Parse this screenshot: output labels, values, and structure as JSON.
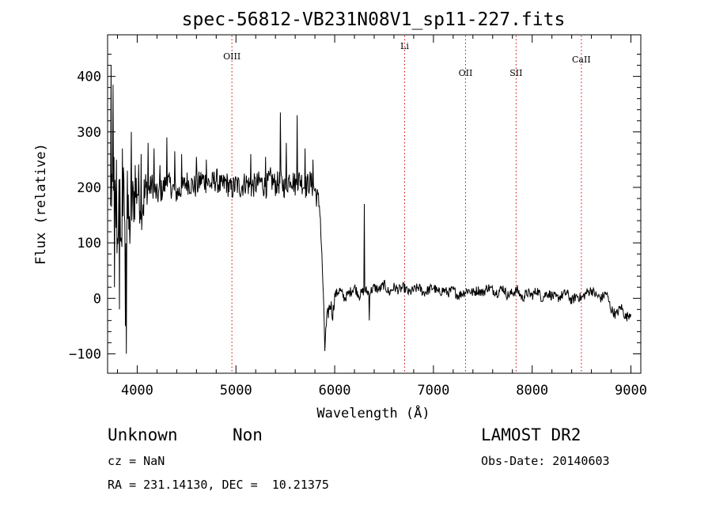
{
  "chart_data": {
    "type": "line",
    "title": "spec-56812-VB231N08V1_sp11-227.fits",
    "xlabel": "Wavelength (Å)",
    "ylabel": "Flux (relative)",
    "xlim": [
      3700,
      9100
    ],
    "ylim": [
      -135,
      475
    ],
    "x_ticks": [
      4000,
      5000,
      6000,
      7000,
      8000,
      9000
    ],
    "y_ticks": [
      -100,
      0,
      100,
      200,
      300,
      400
    ],
    "series": [
      {
        "x": [
          3740,
          3760,
          3780,
          3800,
          3820,
          3840,
          3860,
          3880,
          3900,
          3920,
          3950,
          3980,
          4000,
          4050,
          4100,
          4150,
          4200,
          4250,
          4300,
          4350,
          4400,
          4450,
          4500,
          4550,
          4600,
          4650,
          4700,
          4750,
          4800,
          4850,
          4900,
          4950,
          5000,
          5050,
          5100,
          5150,
          5200,
          5250,
          5300,
          5350,
          5400,
          5450,
          5500,
          5550,
          5600,
          5650,
          5700,
          5750,
          5800,
          5850,
          5880,
          5900,
          5920,
          5940,
          5960,
          5980,
          6000,
          6050,
          6100,
          6150,
          6200,
          6250,
          6300,
          6350,
          6400,
          6450,
          6500,
          6550,
          6600,
          6650,
          6700,
          6750,
          6800,
          6850,
          6900,
          6950,
          7000,
          7050,
          7100,
          7150,
          7200,
          7250,
          7300,
          7350,
          7400,
          7450,
          7500,
          7550,
          7600,
          7650,
          7700,
          7750,
          7800,
          7850,
          7900,
          7950,
          8000,
          8050,
          8100,
          8150,
          8200,
          8250,
          8300,
          8350,
          8400,
          8450,
          8500,
          8550,
          8600,
          8650,
          8700,
          8750,
          8800,
          8850,
          8900,
          8950,
          9000
        ],
        "y": [
          150,
          230,
          160,
          100,
          210,
          80,
          190,
          130,
          150,
          120,
          170,
          190,
          200,
          175,
          190,
          205,
          185,
          195,
          210,
          200,
          190,
          195,
          210,
          205,
          200,
          215,
          210,
          205,
          215,
          200,
          210,
          195,
          205,
          200,
          210,
          200,
          205,
          210,
          200,
          215,
          205,
          210,
          200,
          220,
          205,
          215,
          200,
          210,
          195,
          165,
          30,
          -85,
          -40,
          -20,
          -10,
          -30,
          5,
          15,
          0,
          10,
          20,
          5,
          15,
          10,
          20,
          15,
          25,
          10,
          20,
          15,
          20,
          10,
          15,
          20,
          10,
          15,
          20,
          10,
          15,
          10,
          15,
          5,
          10,
          15,
          10,
          15,
          10,
          20,
          15,
          10,
          20,
          5,
          10,
          15,
          0,
          10,
          5,
          15,
          0,
          10,
          5,
          0,
          5,
          10,
          -5,
          5,
          0,
          10,
          15,
          5,
          0,
          10,
          -20,
          -30,
          -15,
          -35,
          -25
        ]
      }
    ],
    "spikes": [
      {
        "x": 3735,
        "y": 420
      },
      {
        "x": 3755,
        "y": 385
      },
      {
        "x": 3770,
        "y": 20
      },
      {
        "x": 3790,
        "y": 250
      },
      {
        "x": 3820,
        "y": -20
      },
      {
        "x": 3850,
        "y": 270
      },
      {
        "x": 3880,
        "y": -50
      },
      {
        "x": 3890,
        "y": -100
      },
      {
        "x": 3900,
        "y": 230
      },
      {
        "x": 3940,
        "y": 300
      },
      {
        "x": 3980,
        "y": 240
      },
      {
        "x": 4040,
        "y": 260
      },
      {
        "x": 4110,
        "y": 280
      },
      {
        "x": 4170,
        "y": 270
      },
      {
        "x": 4230,
        "y": 240
      },
      {
        "x": 4300,
        "y": 290
      },
      {
        "x": 4380,
        "y": 265
      },
      {
        "x": 4450,
        "y": 260
      },
      {
        "x": 4600,
        "y": 255
      },
      {
        "x": 4700,
        "y": 250
      },
      {
        "x": 5150,
        "y": 260
      },
      {
        "x": 5300,
        "y": 255
      },
      {
        "x": 5450,
        "y": 335
      },
      {
        "x": 5510,
        "y": 280
      },
      {
        "x": 5620,
        "y": 330
      },
      {
        "x": 5700,
        "y": 270
      },
      {
        "x": 5780,
        "y": 250
      },
      {
        "x": 5900,
        "y": -95
      },
      {
        "x": 6300,
        "y": 170
      },
      {
        "x": 6350,
        "y": -40
      }
    ],
    "line_markers": [
      {
        "label": "OIII",
        "x": 4959,
        "color": "#cc0000"
      },
      {
        "label": "Li",
        "x": 6708,
        "color": "#cc0000"
      },
      {
        "label": "OII",
        "x": 7325,
        "color": "#cc0000"
      },
      {
        "label": "SII",
        "x": 7837,
        "color": "#cc0000"
      },
      {
        "label": "CaII",
        "x": 8498,
        "color": "#cc0000"
      }
    ],
    "grid": false
  },
  "info": {
    "classification": "Unknown",
    "subclass": "Non",
    "cz": "cz = NaN",
    "radec": "RA = 231.14130, DEC =  10.21375",
    "survey": "LAMOST DR2",
    "obs_date": "Obs-Date: 20140603"
  }
}
